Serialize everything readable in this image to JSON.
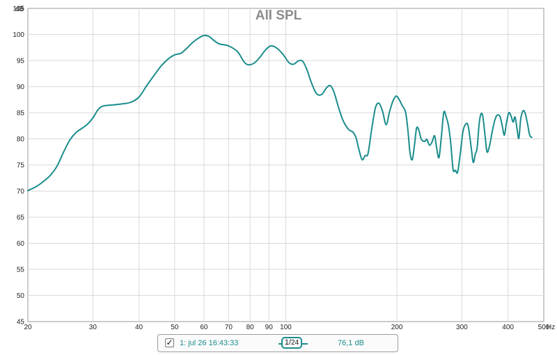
{
  "chart_data": {
    "type": "line",
    "title": "All SPL",
    "ylabel": "dB",
    "xlabel": "Hz",
    "xscale": "log",
    "xlim": [
      20,
      500
    ],
    "ylim": [
      45,
      105
    ],
    "x_ticks": [
      20,
      30,
      40,
      50,
      60,
      70,
      80,
      90,
      100,
      200,
      300,
      400,
      500
    ],
    "x_tick_labels": [
      "20",
      "30",
      "40",
      "50",
      "60",
      "70",
      "80",
      "90",
      "100",
      "200",
      "300",
      "400",
      "500"
    ],
    "y_ticks": [
      45,
      50,
      55,
      60,
      65,
      70,
      75,
      80,
      85,
      90,
      95,
      100,
      105
    ],
    "grid": true,
    "series": [
      {
        "name": "1: jul 26 16:43:33",
        "color": "#1a8c8c",
        "points": [
          [
            20,
            70.1
          ],
          [
            21,
            70.8
          ],
          [
            22,
            71.8
          ],
          [
            23,
            73.0
          ],
          [
            24,
            74.8
          ],
          [
            25,
            77.5
          ],
          [
            26,
            79.8
          ],
          [
            27,
            81.2
          ],
          [
            28,
            82.0
          ],
          [
            29,
            82.8
          ],
          [
            30,
            84.0
          ],
          [
            31,
            85.6
          ],
          [
            32,
            86.3
          ],
          [
            34,
            86.5
          ],
          [
            36,
            86.7
          ],
          [
            38,
            87.0
          ],
          [
            40,
            88.0
          ],
          [
            42,
            90.2
          ],
          [
            44,
            92.2
          ],
          [
            46,
            94.0
          ],
          [
            48,
            95.3
          ],
          [
            50,
            96.1
          ],
          [
            52,
            96.4
          ],
          [
            54,
            97.4
          ],
          [
            56,
            98.5
          ],
          [
            58,
            99.3
          ],
          [
            60,
            99.8
          ],
          [
            62,
            99.6
          ],
          [
            64,
            98.8
          ],
          [
            66,
            98.2
          ],
          [
            70,
            97.8
          ],
          [
            74,
            96.7
          ],
          [
            77,
            94.8
          ],
          [
            79,
            94.2
          ],
          [
            82,
            94.5
          ],
          [
            85,
            95.6
          ],
          [
            88,
            97.0
          ],
          [
            91,
            97.8
          ],
          [
            94,
            97.5
          ],
          [
            98,
            96.3
          ],
          [
            102,
            94.6
          ],
          [
            105,
            94.3
          ],
          [
            108,
            94.9
          ],
          [
            111,
            94.9
          ],
          [
            114,
            93.3
          ],
          [
            117,
            91.0
          ],
          [
            121,
            88.7
          ],
          [
            125,
            88.5
          ],
          [
            129,
            89.8
          ],
          [
            132,
            90.2
          ],
          [
            135,
            89.0
          ],
          [
            139,
            86.0
          ],
          [
            143,
            83.5
          ],
          [
            148,
            81.8
          ],
          [
            152,
            81.3
          ],
          [
            155,
            80.2
          ],
          [
            158,
            77.8
          ],
          [
            161,
            76.0
          ],
          [
            164,
            76.8
          ],
          [
            167,
            77.2
          ],
          [
            171,
            82.0
          ],
          [
            175,
            86.0
          ],
          [
            179,
            86.8
          ],
          [
            183,
            85.2
          ],
          [
            187,
            82.7
          ],
          [
            191,
            85.2
          ],
          [
            195,
            87.2
          ],
          [
            199,
            88.2
          ],
          [
            203,
            87.5
          ],
          [
            207,
            86.3
          ],
          [
            211,
            85.2
          ],
          [
            214,
            82.0
          ],
          [
            217,
            77.4
          ],
          [
            220,
            76.0
          ],
          [
            223,
            78.6
          ],
          [
            226,
            82.0
          ],
          [
            229,
            81.8
          ],
          [
            233,
            79.9
          ],
          [
            238,
            79.5
          ],
          [
            241,
            79.9
          ],
          [
            245,
            78.8
          ],
          [
            249,
            79.4
          ],
          [
            253,
            80.6
          ],
          [
            256,
            78.5
          ],
          [
            260,
            76.4
          ],
          [
            264,
            80.5
          ],
          [
            268,
            85.1
          ],
          [
            272,
            84.2
          ],
          [
            276,
            82.5
          ],
          [
            280,
            79.0
          ],
          [
            284,
            74.1
          ],
          [
            288,
            74.0
          ],
          [
            292,
            73.6
          ],
          [
            297,
            77.2
          ],
          [
            302,
            81.4
          ],
          [
            307,
            82.8
          ],
          [
            312,
            82.5
          ],
          [
            318,
            78.3
          ],
          [
            322,
            75.5
          ],
          [
            326,
            77.0
          ],
          [
            330,
            78.3
          ],
          [
            334,
            82.8
          ],
          [
            338,
            84.8
          ],
          [
            342,
            84.2
          ],
          [
            347,
            80.3
          ],
          [
            351,
            77.5
          ],
          [
            356,
            78.5
          ],
          [
            361,
            80.7
          ],
          [
            366,
            82.8
          ],
          [
            371,
            84.2
          ],
          [
            376,
            84.6
          ],
          [
            381,
            84.2
          ],
          [
            386,
            82.5
          ],
          [
            391,
            80.7
          ],
          [
            396,
            83.0
          ],
          [
            402,
            85.0
          ],
          [
            408,
            84.3
          ],
          [
            413,
            83.2
          ],
          [
            418,
            84.2
          ],
          [
            423,
            82.0
          ],
          [
            428,
            80.1
          ],
          [
            433,
            83.8
          ],
          [
            440,
            85.4
          ],
          [
            446,
            84.7
          ],
          [
            452,
            82.8
          ],
          [
            458,
            80.7
          ],
          [
            464,
            80.3
          ]
        ]
      }
    ]
  },
  "legend": {
    "checkbox_mark": "✓",
    "checked": true,
    "name": "1: jul 26 16:43:33",
    "smoothing_num": "1",
    "smoothing_den": "24",
    "value": "76,1 dB"
  }
}
